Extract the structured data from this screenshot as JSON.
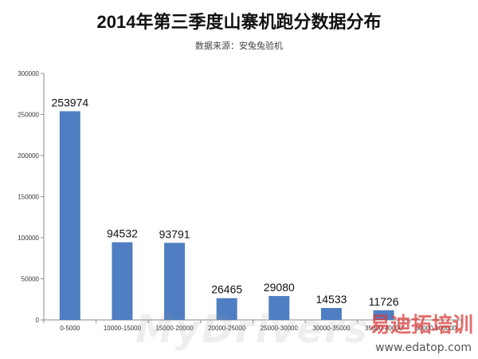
{
  "header": {
    "title": "2014年第三季度山寨机跑分数据分布",
    "subtitle": "数据来源：安兔兔验机"
  },
  "watermarks": {
    "mydrivers": "MyDrivers",
    "edatop_cn": "易迪拓培训",
    "edatop_url": "www.edatop.com"
  },
  "colors": {
    "bar": "#4f7ec2",
    "axis": "#888888",
    "grid": "#dddddd"
  },
  "chart_data": {
    "type": "bar",
    "title": "2014年第三季度山寨机跑分数据分布",
    "subtitle": "数据来源：安兔兔验机",
    "categories": [
      "0-5000",
      "10000-15000",
      "15000-20000",
      "20000-25000",
      "25000-30000",
      "30000-35000",
      "35000-40000",
      "50000-100000"
    ],
    "values": [
      253974,
      94532,
      93791,
      26465,
      29080,
      14533,
      11726,
      0
    ],
    "data_labels": [
      "253974",
      "94532",
      "93791",
      "26465",
      "29080",
      "14533",
      "11726",
      ""
    ],
    "ylim": [
      0,
      300000
    ],
    "yticks": [
      0,
      50000,
      100000,
      150000,
      200000,
      250000,
      300000
    ],
    "ytick_labels": [
      "0",
      "50000",
      "100000",
      "150000",
      "200000",
      "250000",
      "300000"
    ],
    "xlabel": "",
    "ylabel": "",
    "grid": false,
    "legend": "none"
  }
}
